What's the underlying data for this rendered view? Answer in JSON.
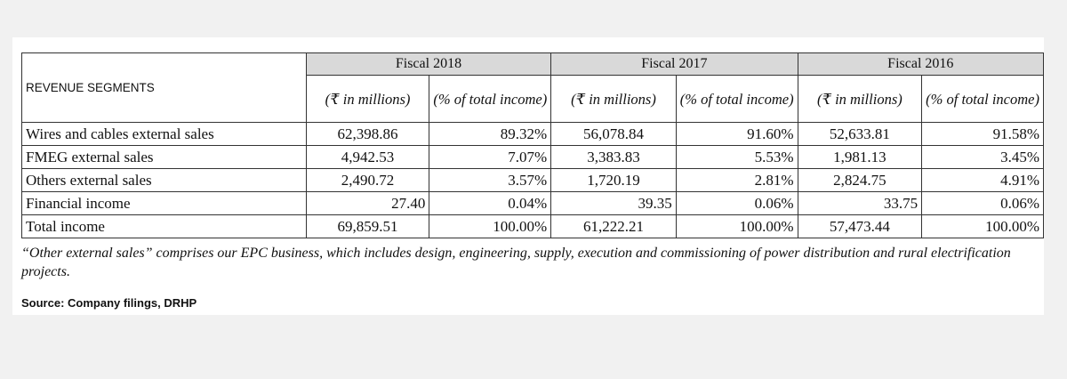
{
  "table": {
    "segment_header": "REVENUE SEGMENTS",
    "years": [
      {
        "label": "Fiscal 2018",
        "amount_header": "(₹ in millions)",
        "percent_header": "(% of total income)"
      },
      {
        "label": "Fiscal 2017",
        "amount_header": "(₹ in millions)",
        "percent_header": "(% of total income)"
      },
      {
        "label": "Fiscal 2016",
        "amount_header": "(₹ in millions)",
        "percent_header": "(% of total income)"
      }
    ],
    "rows": [
      {
        "label": "Wires and cables external sales",
        "values": [
          "62,398.86",
          "89.32%",
          "56,078.84",
          "91.60%",
          "52,633.81",
          "91.58%"
        ]
      },
      {
        "label": "FMEG external sales",
        "values": [
          "4,942.53",
          "7.07%",
          "3,383.83",
          "5.53%",
          "1,981.13",
          "3.45%"
        ]
      },
      {
        "label": "Others external sales",
        "values": [
          "2,490.72",
          "3.57%",
          "1,720.19",
          "2.81%",
          "2,824.75",
          "4.91%"
        ]
      },
      {
        "label": "Financial income",
        "values": [
          "27.40",
          "0.04%",
          "39.35",
          "0.06%",
          "33.75",
          "0.06%"
        ]
      },
      {
        "label": "Total income",
        "values": [
          "69,859.51",
          "100.00%",
          "61,222.21",
          "100.00%",
          "57,473.44",
          "100.00%"
        ]
      }
    ]
  },
  "note": "“Other external sales” comprises our EPC business, which includes design, engineering, supply, execution and commissioning of power distribution and rural electrification projects.",
  "source": "Source: Company filings, DRHP"
}
